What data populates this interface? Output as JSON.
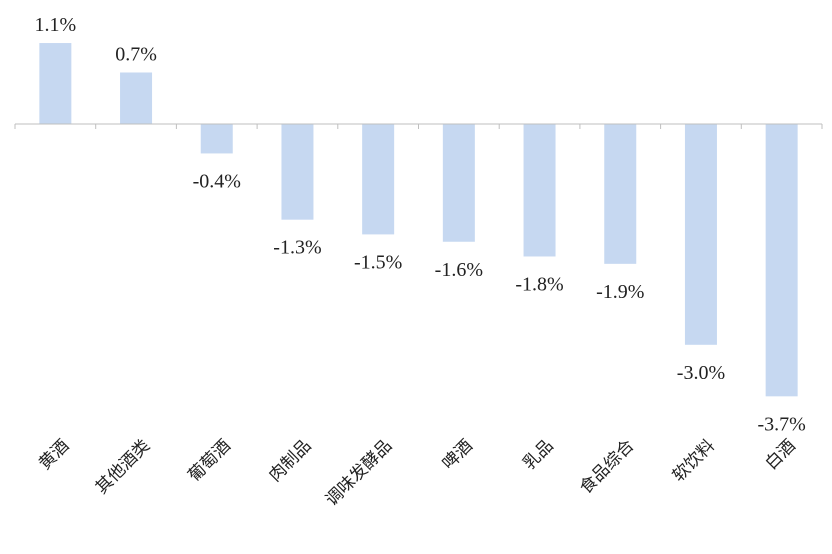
{
  "chart_data": {
    "type": "bar",
    "categories": [
      "黄酒",
      "其他酒类",
      "葡萄酒",
      "肉制品",
      "调味发酵品",
      "啤酒",
      "乳品",
      "食品综合",
      "软饮料",
      "白酒"
    ],
    "values": [
      1.1,
      0.7,
      -0.4,
      -1.3,
      -1.5,
      -1.6,
      -1.8,
      -1.9,
      -3.0,
      -3.7
    ],
    "value_labels": [
      "1.1%",
      "0.7%",
      "-0.4%",
      "-1.3%",
      "-1.5%",
      "-1.6%",
      "-1.8%",
      "-1.9%",
      "-3.0%",
      "-3.7%"
    ],
    "title": "",
    "xlabel": "",
    "ylabel": "",
    "ylim": [
      -3.7,
      1.1
    ],
    "grid": false,
    "legend": "none",
    "bar_color": "#c6d8f1"
  }
}
